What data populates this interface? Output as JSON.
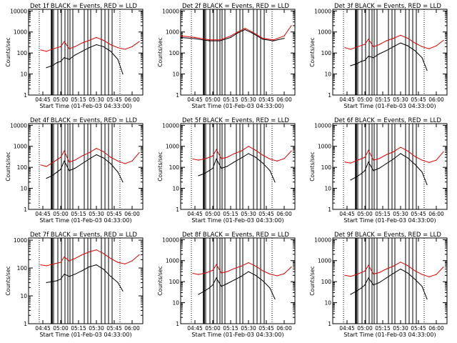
{
  "colors": {
    "events": "#000000",
    "lld": "#e00000",
    "axis": "#000000"
  },
  "chart_data": [
    {
      "type": "line",
      "title": "Det 1f BLACK = Events, RED = LLD",
      "xlabel": "Start Time (01-Feb-03 04:33:00)",
      "ylabel": "Counts/sec",
      "xticks": [
        "04:45",
        "05:00",
        "05:15",
        "05:30",
        "05:45",
        "06:00"
      ],
      "yticks": [
        "1",
        "10",
        "100",
        "1000",
        "10000"
      ],
      "ylim": [
        1,
        12000
      ],
      "yscale": "log",
      "series": [
        {
          "color": "#000000",
          "x": [
            4.8,
            4.88,
            4.95,
            5.0,
            5.05,
            5.12,
            5.2,
            5.3,
            5.4,
            5.5,
            5.6,
            5.7,
            5.8,
            5.87
          ],
          "y": [
            20,
            25,
            35,
            40,
            60,
            50,
            80,
            120,
            180,
            250,
            200,
            120,
            50,
            10
          ]
        },
        {
          "color": "#e00000",
          "x": [
            4.72,
            4.8,
            4.9,
            5.0,
            5.05,
            5.12,
            5.2,
            5.3,
            5.4,
            5.5,
            5.6,
            5.7,
            5.8,
            5.9,
            6.0,
            6.1
          ],
          "y": [
            140,
            120,
            160,
            200,
            350,
            160,
            200,
            300,
            400,
            550,
            400,
            250,
            180,
            150,
            200,
            350
          ]
        }
      ]
    },
    {
      "type": "line",
      "title": "Det 2f BLACK = Events, RED = LLD",
      "xlabel": "Start Time (01-Feb-03 04:33:00)",
      "ylabel": "Counts/sec",
      "xticks": [
        "04:45",
        "05:00",
        "05:15",
        "05:30",
        "05:45",
        "06:00"
      ],
      "yticks": [
        "1",
        "10",
        "100",
        "1000",
        "10000"
      ],
      "ylim": [
        1,
        12000
      ],
      "yscale": "log",
      "series": [
        {
          "color": "#000000",
          "x": [
            4.55,
            4.75,
            4.95,
            5.1,
            5.25,
            5.35,
            5.45,
            5.55,
            5.7,
            5.85,
            6.0
          ],
          "y": [
            550,
            480,
            380,
            380,
            550,
            900,
            1300,
            900,
            450,
            380,
            500
          ]
        },
        {
          "color": "#e00000",
          "x": [
            4.55,
            4.75,
            4.95,
            5.1,
            5.25,
            5.35,
            5.45,
            5.55,
            5.7,
            5.85,
            6.0,
            6.1
          ],
          "y": [
            650,
            550,
            420,
            420,
            650,
            1000,
            1500,
            1000,
            500,
            420,
            650,
            2000
          ]
        }
      ]
    },
    {
      "type": "line",
      "title": "Det 3f BLACK = Events, RED = LLD",
      "xlabel": "Start Time (01-Feb-03 04:33:00)",
      "ylabel": "Counts/sec",
      "xticks": [
        "04:45",
        "05:00",
        "05:15",
        "05:30",
        "05:45",
        "06:00"
      ],
      "yticks": [
        "1",
        "10",
        "100",
        "1000",
        "10000"
      ],
      "ylim": [
        1,
        12000
      ],
      "yscale": "log",
      "series": [
        {
          "color": "#000000",
          "x": [
            4.8,
            4.88,
            4.95,
            5.0,
            5.05,
            5.12,
            5.2,
            5.3,
            5.4,
            5.5,
            5.6,
            5.7,
            5.8,
            5.87
          ],
          "y": [
            25,
            30,
            40,
            45,
            70,
            60,
            90,
            130,
            200,
            300,
            220,
            130,
            60,
            15
          ]
        },
        {
          "color": "#e00000",
          "x": [
            4.72,
            4.8,
            4.9,
            5.0,
            5.05,
            5.12,
            5.2,
            5.3,
            5.4,
            5.5,
            5.6,
            5.7,
            5.8,
            5.9,
            6.0,
            6.1
          ],
          "y": [
            180,
            150,
            200,
            260,
            450,
            200,
            250,
            380,
            500,
            700,
            500,
            300,
            200,
            160,
            220,
            400
          ]
        }
      ]
    },
    {
      "type": "line",
      "title": "Det 4f BLACK = Events, RED = LLD",
      "xlabel": "Start Time (01-Feb-03 04:33:00)",
      "ylabel": "Counts/sec",
      "xticks": [
        "04:45",
        "05:00",
        "05:15",
        "05:30",
        "05:45",
        "06:00"
      ],
      "yticks": [
        "1",
        "10",
        "100",
        "1000",
        "10000"
      ],
      "ylim": [
        1,
        12000
      ],
      "yscale": "log",
      "series": [
        {
          "color": "#000000",
          "x": [
            4.8,
            4.88,
            4.95,
            5.0,
            5.05,
            5.12,
            5.2,
            5.3,
            5.4,
            5.5,
            5.6,
            5.7,
            5.8,
            5.87
          ],
          "y": [
            30,
            40,
            60,
            80,
            200,
            70,
            90,
            150,
            250,
            400,
            280,
            150,
            60,
            20
          ]
        },
        {
          "color": "#e00000",
          "x": [
            4.72,
            4.8,
            4.9,
            5.0,
            5.05,
            5.12,
            5.2,
            5.3,
            5.4,
            5.5,
            5.6,
            5.7,
            5.8,
            5.9,
            6.0,
            6.1
          ],
          "y": [
            130,
            110,
            180,
            300,
            600,
            180,
            220,
            350,
            500,
            800,
            550,
            300,
            200,
            150,
            200,
            500
          ]
        }
      ]
    },
    {
      "type": "line",
      "title": "Det 5f BLACK = Events, RED = LLD",
      "xlabel": "Start Time (01-Feb-03 04:33:00)",
      "ylabel": "Counts/sec",
      "xticks": [
        "04:45",
        "05:00",
        "05:15",
        "05:30",
        "05:45",
        "06:00"
      ],
      "yticks": [
        "1",
        "10",
        "100",
        "1000",
        "10000"
      ],
      "ylim": [
        1,
        12000
      ],
      "yscale": "log",
      "series": [
        {
          "color": "#000000",
          "x": [
            4.8,
            4.88,
            4.95,
            5.0,
            5.05,
            5.12,
            5.2,
            5.3,
            5.4,
            5.5,
            5.6,
            5.7,
            5.8,
            5.87
          ],
          "y": [
            40,
            50,
            70,
            90,
            250,
            90,
            110,
            180,
            280,
            450,
            300,
            160,
            70,
            20
          ]
        },
        {
          "color": "#e00000",
          "x": [
            4.72,
            4.8,
            4.9,
            5.0,
            5.05,
            5.12,
            5.2,
            5.3,
            5.4,
            5.5,
            5.6,
            5.7,
            5.8,
            5.9,
            6.0,
            6.1
          ],
          "y": [
            250,
            220,
            260,
            350,
            700,
            260,
            300,
            450,
            600,
            1000,
            650,
            380,
            250,
            200,
            260,
            600
          ]
        }
      ]
    },
    {
      "type": "line",
      "title": "Det 6f BLACK = Events, RED = LLD",
      "xlabel": "Start Time (01-Feb-03 04:33:00)",
      "ylabel": "Counts/sec",
      "xticks": [
        "04:45",
        "05:00",
        "05:15",
        "05:30",
        "05:45",
        "06:00"
      ],
      "yticks": [
        "1",
        "10",
        "100",
        "1000",
        "10000"
      ],
      "ylim": [
        1,
        12000
      ],
      "yscale": "log",
      "series": [
        {
          "color": "#000000",
          "x": [
            4.8,
            4.88,
            4.95,
            5.0,
            5.05,
            5.12,
            5.2,
            5.3,
            5.4,
            5.5,
            5.6,
            5.7,
            5.8,
            5.87
          ],
          "y": [
            25,
            35,
            50,
            70,
            180,
            70,
            90,
            150,
            250,
            450,
            280,
            140,
            60,
            15
          ]
        },
        {
          "color": "#e00000",
          "x": [
            4.72,
            4.8,
            4.9,
            5.0,
            5.05,
            5.12,
            5.2,
            5.3,
            5.4,
            5.5,
            5.6,
            5.7,
            5.8,
            5.9,
            6.0,
            6.1
          ],
          "y": [
            180,
            160,
            220,
            300,
            650,
            220,
            260,
            400,
            550,
            900,
            600,
            330,
            220,
            170,
            220,
            550
          ]
        }
      ]
    },
    {
      "type": "line",
      "title": "Det 7f BLACK = Events, RED = LLD",
      "xlabel": "Start Time (01-Feb-03 04:33:00)",
      "ylabel": "Counts/sec",
      "xticks": [
        "04:45",
        "05:00",
        "05:15",
        "05:30",
        "05:45",
        "06:00"
      ],
      "yticks": [
        "1",
        "10",
        "100",
        "1000"
      ],
      "ylim": [
        1,
        1200
      ],
      "yscale": "log",
      "series": [
        {
          "color": "#000000",
          "x": [
            4.8,
            4.88,
            4.95,
            5.0,
            5.05,
            5.12,
            5.2,
            5.3,
            5.4,
            5.5,
            5.6,
            5.7,
            5.8,
            5.87
          ],
          "y": [
            30,
            32,
            35,
            40,
            60,
            50,
            60,
            80,
            110,
            130,
            90,
            50,
            30,
            15
          ]
        },
        {
          "color": "#e00000",
          "x": [
            4.72,
            4.8,
            4.9,
            5.0,
            5.05,
            5.12,
            5.2,
            5.3,
            5.4,
            5.5,
            5.6,
            5.7,
            5.8,
            5.9,
            6.0,
            6.1
          ],
          "y": [
            130,
            120,
            140,
            160,
            250,
            180,
            220,
            300,
            380,
            450,
            330,
            220,
            160,
            140,
            180,
            300
          ]
        }
      ]
    },
    {
      "type": "line",
      "title": "Det 8f BLACK = Events, RED = LLD",
      "xlabel": "Start Time (01-Feb-03 04:33:00)",
      "ylabel": "Counts/sec",
      "xticks": [
        "04:45",
        "05:00",
        "05:15",
        "05:30",
        "05:45",
        "06:00"
      ],
      "yticks": [
        "1",
        "10",
        "100",
        "1000",
        "10000"
      ],
      "ylim": [
        1,
        12000
      ],
      "yscale": "log",
      "series": [
        {
          "color": "#000000",
          "x": [
            4.8,
            4.88,
            4.95,
            5.0,
            5.05,
            5.12,
            5.2,
            5.3,
            5.4,
            5.5,
            5.6,
            5.7,
            5.8,
            5.87
          ],
          "y": [
            25,
            35,
            50,
            70,
            150,
            60,
            80,
            120,
            180,
            300,
            200,
            110,
            50,
            15
          ]
        },
        {
          "color": "#e00000",
          "x": [
            4.72,
            4.8,
            4.9,
            5.0,
            5.05,
            5.12,
            5.2,
            5.3,
            5.4,
            5.5,
            5.6,
            5.7,
            5.8,
            5.9,
            6.0,
            6.1
          ],
          "y": [
            250,
            220,
            260,
            350,
            650,
            260,
            300,
            420,
            550,
            800,
            550,
            330,
            230,
            190,
            240,
            500
          ]
        }
      ]
    },
    {
      "type": "line",
      "title": "Det 9f BLACK = Events, RED = LLD",
      "xlabel": "Start Time (01-Feb-03 04:33:00)",
      "ylabel": "Counts/sec",
      "xticks": [
        "04:45",
        "05:00",
        "05:15",
        "05:30",
        "05:45",
        "06:00"
      ],
      "yticks": [
        "1",
        "10",
        "100",
        "1000",
        "10000"
      ],
      "ylim": [
        1,
        12000
      ],
      "yscale": "log",
      "series": [
        {
          "color": "#000000",
          "x": [
            4.8,
            4.88,
            4.95,
            5.0,
            5.05,
            5.12,
            5.2,
            5.3,
            5.4,
            5.5,
            5.6,
            5.7,
            5.8,
            5.87
          ],
          "y": [
            25,
            35,
            50,
            70,
            150,
            70,
            90,
            150,
            250,
            400,
            260,
            130,
            60,
            15
          ]
        },
        {
          "color": "#e00000",
          "x": [
            4.72,
            4.8,
            4.9,
            5.0,
            5.05,
            5.12,
            5.2,
            5.3,
            5.4,
            5.5,
            5.6,
            5.7,
            5.8,
            5.9,
            6.0,
            6.1
          ],
          "y": [
            200,
            180,
            230,
            320,
            600,
            230,
            270,
            400,
            550,
            850,
            580,
            330,
            220,
            170,
            220,
            500
          ]
        }
      ]
    }
  ]
}
